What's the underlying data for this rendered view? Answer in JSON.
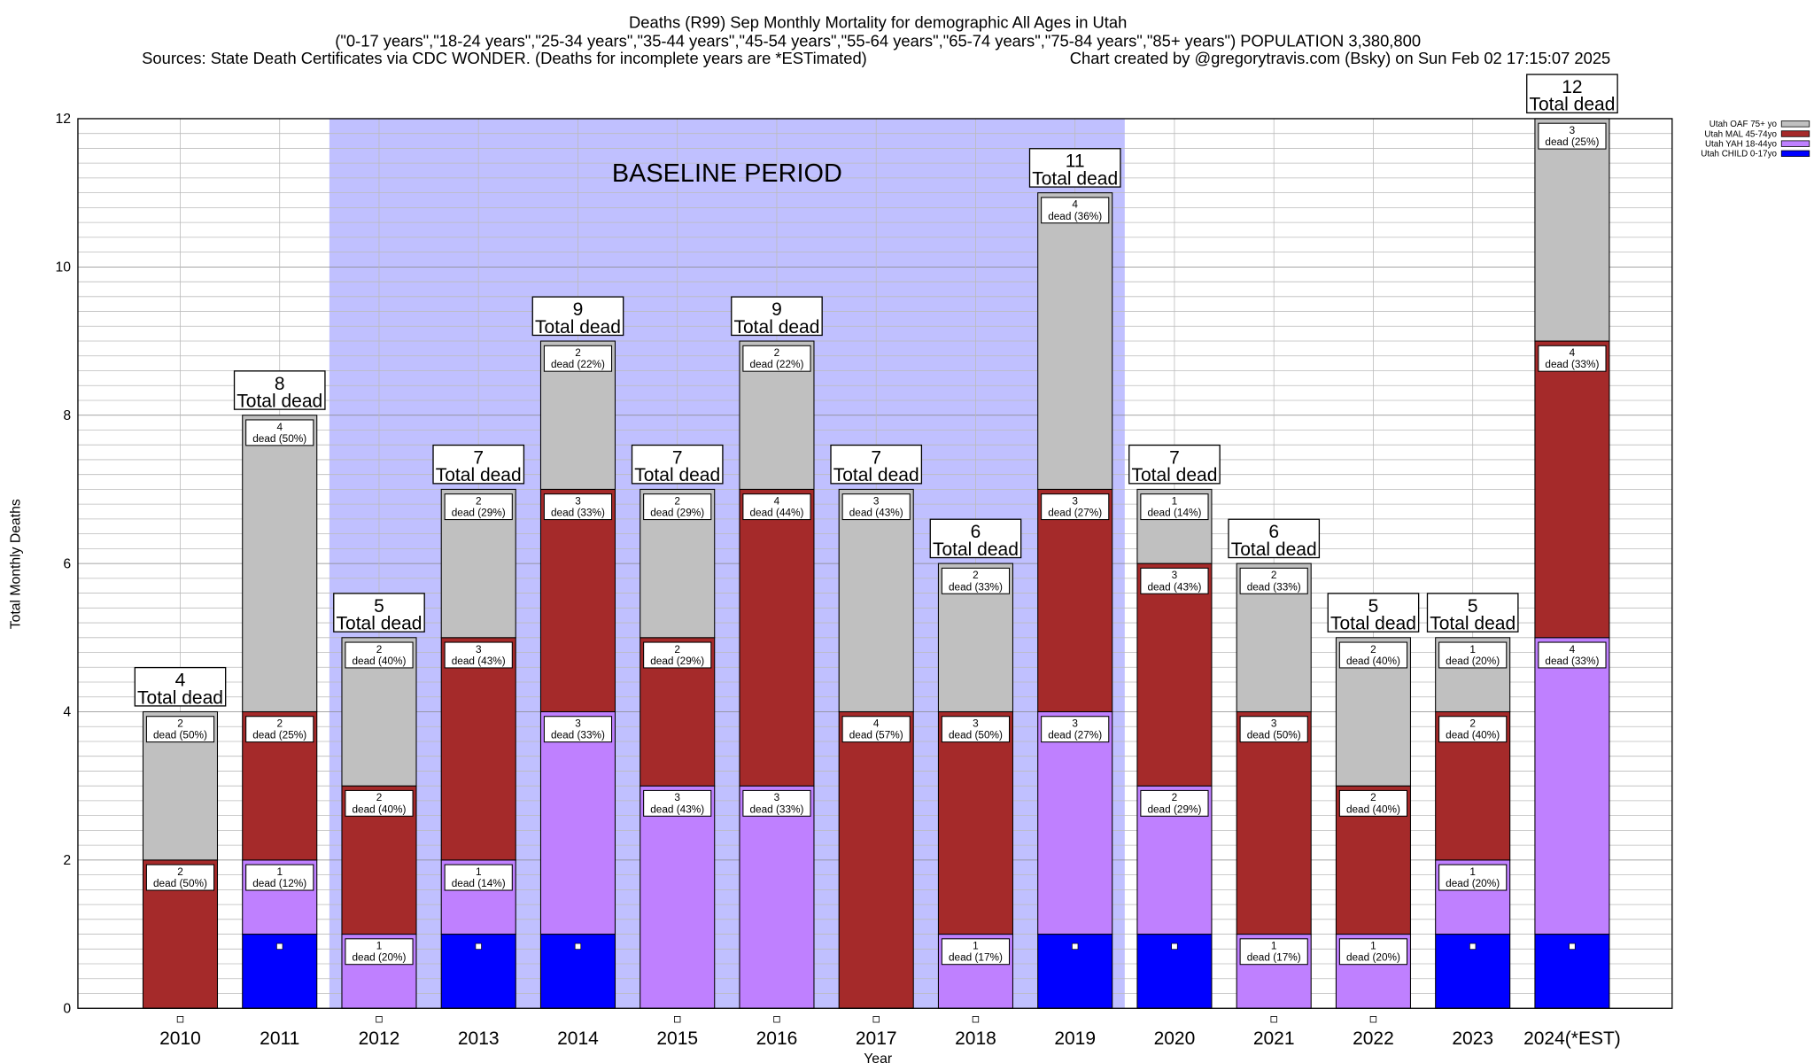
{
  "chart_data": {
    "type": "bar",
    "stacked": true,
    "title_lines": [
      "Deaths (R99) Sep Monthly Mortality for demographic All Ages in Utah",
      "(\"0-17 years\",\"18-24 years\",\"25-34 years\",\"35-44 years\",\"45-54 years\",\"55-64 years\",\"65-74 years\",\"75-84 years\",\"85+ years\") POPULATION 3,380,800"
    ],
    "sources": "Sources: State Death Certificates via CDC WONDER. (Deaths for incomplete years are *ESTimated)",
    "credit": "Chart created by @gregorytravis.com (Bsky) on Sun Feb 02 17:15:07 2025",
    "xlabel": "Year",
    "ylabel": "Total Monthly Deaths",
    "ylim": [
      0,
      12
    ],
    "yticks": [
      0,
      2,
      4,
      6,
      8,
      10,
      12
    ],
    "grid": true,
    "legend_placement": "top-right",
    "baseline_label": "BASELINE PERIOD",
    "baseline_range": [
      "2012",
      "2019"
    ],
    "total_label": "Total dead",
    "segment_word": "dead",
    "categories": [
      "2010",
      "2011",
      "2012",
      "2013",
      "2014",
      "2015",
      "2016",
      "2017",
      "2018",
      "2019",
      "2020",
      "2021",
      "2022",
      "2023",
      "2024(*EST)"
    ],
    "totals": [
      4,
      8,
      5,
      7,
      9,
      7,
      9,
      7,
      6,
      11,
      7,
      6,
      5,
      5,
      12
    ],
    "series": [
      {
        "name": "Utah CHILD 0-17yo",
        "color": "#0000ff",
        "values": [
          0,
          1,
          0,
          1,
          1,
          0,
          0,
          0,
          0,
          1,
          1,
          0,
          0,
          1,
          1
        ],
        "pct": [
          null,
          null,
          null,
          null,
          null,
          null,
          null,
          null,
          null,
          null,
          null,
          null,
          null,
          null,
          null
        ]
      },
      {
        "name": "Utah YAH 18-44yo",
        "color": "#bf80ff",
        "values": [
          0,
          1,
          1,
          1,
          3,
          3,
          3,
          0,
          1,
          3,
          2,
          1,
          1,
          1,
          4
        ],
        "pct": [
          null,
          12,
          20,
          14,
          33,
          43,
          33,
          null,
          17,
          27,
          29,
          17,
          20,
          20,
          33
        ]
      },
      {
        "name": "Utah MAL 45-74yo",
        "color": "#a52a2a",
        "values": [
          2,
          2,
          2,
          3,
          3,
          2,
          4,
          4,
          3,
          3,
          3,
          3,
          2,
          2,
          4
        ],
        "pct": [
          50,
          25,
          40,
          43,
          33,
          29,
          44,
          57,
          50,
          27,
          43,
          50,
          40,
          40,
          33
        ]
      },
      {
        "name": "Utah OAF 75+ yo",
        "color": "#c0c0c0",
        "values": [
          2,
          4,
          2,
          2,
          2,
          2,
          2,
          3,
          2,
          4,
          1,
          2,
          2,
          1,
          3
        ],
        "pct": [
          50,
          50,
          40,
          29,
          22,
          29,
          22,
          43,
          33,
          36,
          14,
          33,
          40,
          20,
          25
        ]
      }
    ],
    "baseline_color": "#c0c0ff"
  }
}
